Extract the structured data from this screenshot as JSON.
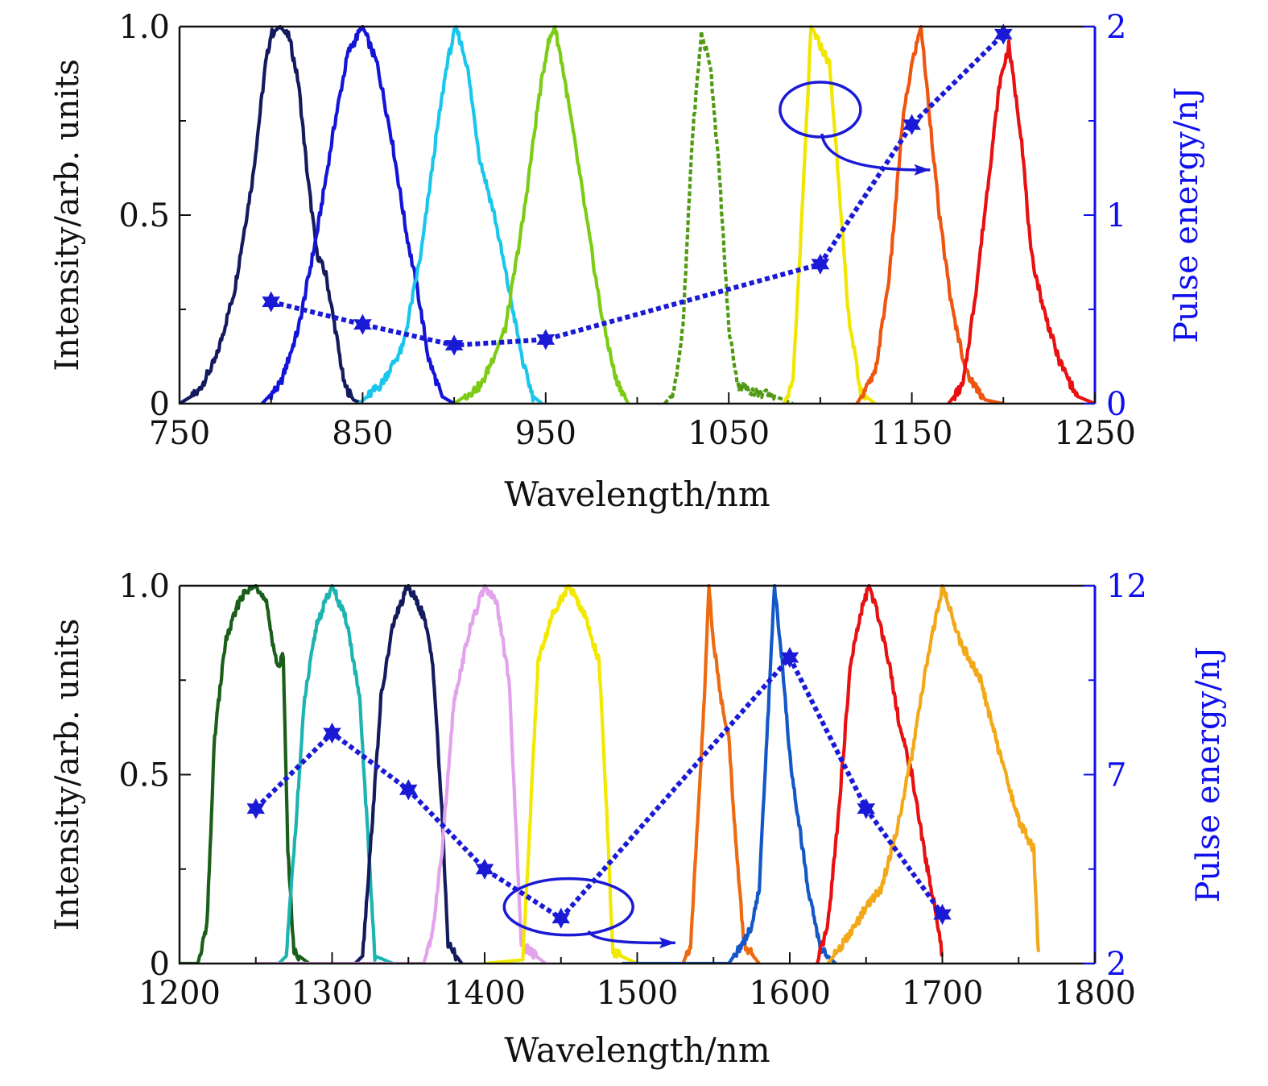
{
  "chart_data": [
    {
      "type": "line",
      "xlabel": "Wavelength/nm",
      "ylabel": "Intensity/arb. units",
      "y2label": "Pulse energy/nJ",
      "xlim": [
        750,
        1250
      ],
      "ylim": [
        0,
        1.0
      ],
      "y2lim": [
        0,
        2
      ],
      "xticks": [
        750,
        850,
        950,
        1050,
        1150,
        1250
      ],
      "xtick_labels": [
        "750",
        "850",
        "950",
        "1050",
        "1150",
        "1250"
      ],
      "yticks": [
        0,
        0.5,
        1.0
      ],
      "ytick_labels": [
        "0",
        "0.5",
        "1.0"
      ],
      "y2ticks": [
        0,
        1,
        2
      ],
      "y2tick_labels": [
        "0",
        "1",
        "2"
      ],
      "spectra": [
        {
          "center": 800,
          "color": "#141a5e",
          "dashed": false,
          "points": [
            [
              750,
              0
            ],
            [
              760,
              0.03
            ],
            [
              770,
              0.12
            ],
            [
              780,
              0.3
            ],
            [
              790,
              0.6
            ],
            [
              797,
              0.9
            ],
            [
              800,
              0.98
            ],
            [
              805,
              1.0
            ],
            [
              810,
              0.97
            ],
            [
              815,
              0.85
            ],
            [
              820,
              0.6
            ],
            [
              825,
              0.4
            ],
            [
              830,
              0.34
            ],
            [
              835,
              0.2
            ],
            [
              840,
              0.05
            ],
            [
              845,
              0.01
            ],
            [
              850,
              0
            ]
          ]
        },
        {
          "center": 850,
          "color": "#1414d8",
          "dashed": false,
          "points": [
            [
              795,
              0
            ],
            [
              805,
              0.05
            ],
            [
              815,
              0.2
            ],
            [
              825,
              0.45
            ],
            [
              835,
              0.75
            ],
            [
              842,
              0.93
            ],
            [
              850,
              1.0
            ],
            [
              858,
              0.9
            ],
            [
              866,
              0.7
            ],
            [
              874,
              0.45
            ],
            [
              880,
              0.3
            ],
            [
              886,
              0.12
            ],
            [
              893,
              0.02
            ],
            [
              900,
              0
            ]
          ]
        },
        {
          "center": 900,
          "color": "#19c6ec",
          "dashed": false,
          "points": [
            [
              848,
              0
            ],
            [
              860,
              0.05
            ],
            [
              872,
              0.15
            ],
            [
              882,
              0.4
            ],
            [
              890,
              0.7
            ],
            [
              896,
              0.9
            ],
            [
              901,
              1.0
            ],
            [
              907,
              0.9
            ],
            [
              914,
              0.65
            ],
            [
              922,
              0.5
            ],
            [
              930,
              0.3
            ],
            [
              938,
              0.1
            ],
            [
              943,
              0.02
            ],
            [
              948,
              0
            ]
          ]
        },
        {
          "center": 955,
          "color": "#7ccc14",
          "dashed": false,
          "points": [
            [
              900,
              0
            ],
            [
              915,
              0.05
            ],
            [
              928,
              0.2
            ],
            [
              938,
              0.5
            ],
            [
              946,
              0.8
            ],
            [
              951,
              0.95
            ],
            [
              955,
              1.0
            ],
            [
              959,
              0.9
            ],
            [
              965,
              0.72
            ],
            [
              972,
              0.5
            ],
            [
              980,
              0.25
            ],
            [
              988,
              0.07
            ],
            [
              995,
              0
            ]
          ]
        },
        {
          "center": 1035,
          "color": "#4f9a12",
          "dashed": true,
          "points": [
            [
              1015,
              0
            ],
            [
              1020,
              0.03
            ],
            [
              1025,
              0.2
            ],
            [
              1030,
              0.7
            ],
            [
              1035,
              0.98
            ],
            [
              1040,
              0.9
            ],
            [
              1045,
              0.6
            ],
            [
              1050,
              0.2
            ],
            [
              1055,
              0.05
            ],
            [
              1065,
              0.03
            ],
            [
              1075,
              0.02
            ],
            [
              1085,
              0
            ]
          ]
        },
        {
          "center": 1095,
          "color": "#f0e600",
          "dashed": false,
          "points": [
            [
              1080,
              0
            ],
            [
              1085,
              0.05
            ],
            [
              1090,
              0.5
            ],
            [
              1095,
              1.0
            ],
            [
              1100,
              0.95
            ],
            [
              1105,
              0.9
            ],
            [
              1110,
              0.6
            ],
            [
              1115,
              0.25
            ],
            [
              1122,
              0.03
            ],
            [
              1130,
              0
            ]
          ]
        },
        {
          "center": 1155,
          "color": "#ee5510",
          "dashed": false,
          "points": [
            [
              1120,
              0
            ],
            [
              1130,
              0.08
            ],
            [
              1138,
              0.35
            ],
            [
              1145,
              0.75
            ],
            [
              1150,
              0.9
            ],
            [
              1155,
              1.0
            ],
            [
              1160,
              0.75
            ],
            [
              1165,
              0.5
            ],
            [
              1172,
              0.25
            ],
            [
              1180,
              0.08
            ],
            [
              1190,
              0.01
            ],
            [
              1200,
              0
            ]
          ]
        },
        {
          "center": 1200,
          "color": "#e81010",
          "dashed": false,
          "points": [
            [
              1170,
              0
            ],
            [
              1178,
              0.05
            ],
            [
              1185,
              0.3
            ],
            [
              1192,
              0.6
            ],
            [
              1198,
              0.85
            ],
            [
              1203,
              0.95
            ],
            [
              1210,
              0.7
            ],
            [
              1215,
              0.4
            ],
            [
              1222,
              0.25
            ],
            [
              1230,
              0.12
            ],
            [
              1240,
              0.02
            ],
            [
              1250,
              0
            ]
          ]
        }
      ],
      "energy_series": {
        "name": "Pulse energy",
        "color": "#1a1ad6",
        "x": [
          800,
          850,
          900,
          950,
          1100,
          1150,
          1200
        ],
        "y": [
          0.54,
          0.42,
          0.31,
          0.34,
          0.74,
          1.48,
          1.96
        ]
      },
      "annotation": {
        "circle_x": 1100,
        "circle_y": 0.78,
        "arrow_to_x": 1160,
        "arrow_to_y": 0.62
      }
    },
    {
      "type": "line",
      "xlabel": "Wavelength/nm",
      "ylabel": "Intensity/arb. units",
      "y2label": "Pulse energy/nJ",
      "xlim": [
        1200,
        1800
      ],
      "ylim": [
        0,
        1.0
      ],
      "y2lim": [
        2,
        12
      ],
      "xticks": [
        1200,
        1300,
        1400,
        1500,
        1600,
        1700,
        1800
      ],
      "xtick_labels": [
        "1200",
        "1300",
        "1400",
        "1500",
        "1600",
        "1700",
        "1800"
      ],
      "yticks": [
        0,
        0.5,
        1.0
      ],
      "ytick_labels": [
        "0",
        "0.5",
        "1.0"
      ],
      "y2ticks": [
        2,
        7,
        12
      ],
      "y2tick_labels": [
        "2",
        "7",
        "12"
      ],
      "spectra": [
        {
          "center": 1250,
          "color": "#1a5e1a",
          "dashed": false,
          "points": [
            [
              1200,
              0
            ],
            [
              1212,
              0
            ],
            [
              1218,
              0.1
            ],
            [
              1223,
              0.6
            ],
            [
              1230,
              0.85
            ],
            [
              1240,
              0.97
            ],
            [
              1250,
              1.0
            ],
            [
              1257,
              0.95
            ],
            [
              1262,
              0.83
            ],
            [
              1265,
              0.78
            ],
            [
              1268,
              0.82
            ],
            [
              1271,
              0.3
            ],
            [
              1275,
              0.03
            ],
            [
              1285,
              0
            ]
          ]
        },
        {
          "center": 1300,
          "color": "#1cb4b0",
          "dashed": false,
          "points": [
            [
              1265,
              0
            ],
            [
              1270,
              0.02
            ],
            [
              1275,
              0.3
            ],
            [
              1282,
              0.7
            ],
            [
              1290,
              0.9
            ],
            [
              1300,
              1.0
            ],
            [
              1310,
              0.9
            ],
            [
              1318,
              0.7
            ],
            [
              1324,
              0.3
            ],
            [
              1328,
              0.02
            ],
            [
              1340,
              0
            ]
          ]
        },
        {
          "center": 1350,
          "color": "#141a5e",
          "dashed": false,
          "points": [
            [
              1315,
              0
            ],
            [
              1320,
              0.02
            ],
            [
              1325,
              0.3
            ],
            [
              1332,
              0.7
            ],
            [
              1340,
              0.9
            ],
            [
              1350,
              1.0
            ],
            [
              1360,
              0.92
            ],
            [
              1366,
              0.8
            ],
            [
              1372,
              0.4
            ],
            [
              1376,
              0.05
            ],
            [
              1385,
              0
            ]
          ]
        },
        {
          "center": 1400,
          "color": "#e3a2ec",
          "dashed": false,
          "points": [
            [
              1250,
              0
            ],
            [
              1360,
              0
            ],
            [
              1366,
              0.08
            ],
            [
              1372,
              0.3
            ],
            [
              1380,
              0.7
            ],
            [
              1390,
              0.88
            ],
            [
              1400,
              1.0
            ],
            [
              1408,
              0.95
            ],
            [
              1416,
              0.75
            ],
            [
              1420,
              0.4
            ],
            [
              1424,
              0.05
            ],
            [
              1440,
              0
            ]
          ]
        },
        {
          "center": 1455,
          "color": "#f2e800",
          "dashed": false,
          "points": [
            [
              1400,
              0
            ],
            [
              1425,
              0.01
            ],
            [
              1430,
              0.4
            ],
            [
              1435,
              0.8
            ],
            [
              1445,
              0.93
            ],
            [
              1455,
              1.0
            ],
            [
              1465,
              0.93
            ],
            [
              1475,
              0.8
            ],
            [
              1480,
              0.4
            ],
            [
              1484,
              0.03
            ],
            [
              1500,
              0
            ]
          ]
        },
        {
          "center": 1548,
          "color": "#ee6a10",
          "dashed": false,
          "points": [
            [
              1530,
              0
            ],
            [
              1535,
              0.05
            ],
            [
              1540,
              0.4
            ],
            [
              1544,
              0.7
            ],
            [
              1547,
              1.0
            ],
            [
              1550,
              0.85
            ],
            [
              1555,
              0.7
            ],
            [
              1560,
              0.6
            ],
            [
              1565,
              0.3
            ],
            [
              1570,
              0.05
            ],
            [
              1580,
              0
            ]
          ]
        },
        {
          "center": 1590,
          "color": "#1458c8",
          "dashed": false,
          "points": [
            [
              1490,
              0
            ],
            [
              1530,
              0
            ],
            [
              1560,
              0
            ],
            [
              1570,
              0.06
            ],
            [
              1575,
              0.1
            ],
            [
              1580,
              0.2
            ],
            [
              1585,
              0.6
            ],
            [
              1590,
              1.0
            ],
            [
              1595,
              0.8
            ],
            [
              1600,
              0.55
            ],
            [
              1605,
              0.4
            ],
            [
              1612,
              0.2
            ],
            [
              1620,
              0.04
            ],
            [
              1630,
              0
            ]
          ]
        },
        {
          "center": 1650,
          "color": "#e81010",
          "dashed": false,
          "points": [
            [
              1618,
              0
            ],
            [
              1625,
              0.1
            ],
            [
              1632,
              0.4
            ],
            [
              1640,
              0.8
            ],
            [
              1648,
              0.95
            ],
            [
              1652,
              1.0
            ],
            [
              1658,
              0.92
            ],
            [
              1665,
              0.8
            ],
            [
              1672,
              0.63
            ],
            [
              1680,
              0.5
            ],
            [
              1688,
              0.3
            ],
            [
              1695,
              0.15
            ],
            [
              1700,
              0.02
            ]
          ]
        },
        {
          "center": 1700,
          "color": "#f2a818",
          "dashed": false,
          "points": [
            [
              1625,
              0
            ],
            [
              1640,
              0.08
            ],
            [
              1650,
              0.15
            ],
            [
              1660,
              0.2
            ],
            [
              1670,
              0.35
            ],
            [
              1680,
              0.55
            ],
            [
              1690,
              0.8
            ],
            [
              1700,
              1.0
            ],
            [
              1712,
              0.85
            ],
            [
              1725,
              0.75
            ],
            [
              1738,
              0.55
            ],
            [
              1750,
              0.38
            ],
            [
              1760,
              0.3
            ],
            [
              1763,
              0.02
            ]
          ]
        }
      ],
      "energy_series": {
        "name": "Pulse energy",
        "color": "#1a1ad6",
        "x": [
          1250,
          1300,
          1350,
          1400,
          1450,
          1600,
          1650,
          1700
        ],
        "y": [
          6.1,
          8.1,
          6.6,
          4.5,
          3.2,
          10.1,
          6.1,
          3.3
        ]
      },
      "annotation": {
        "circle_x": 1455,
        "circle_y": 0.15,
        "arrow_to_x": 1525,
        "arrow_to_y": 0.055
      }
    }
  ]
}
